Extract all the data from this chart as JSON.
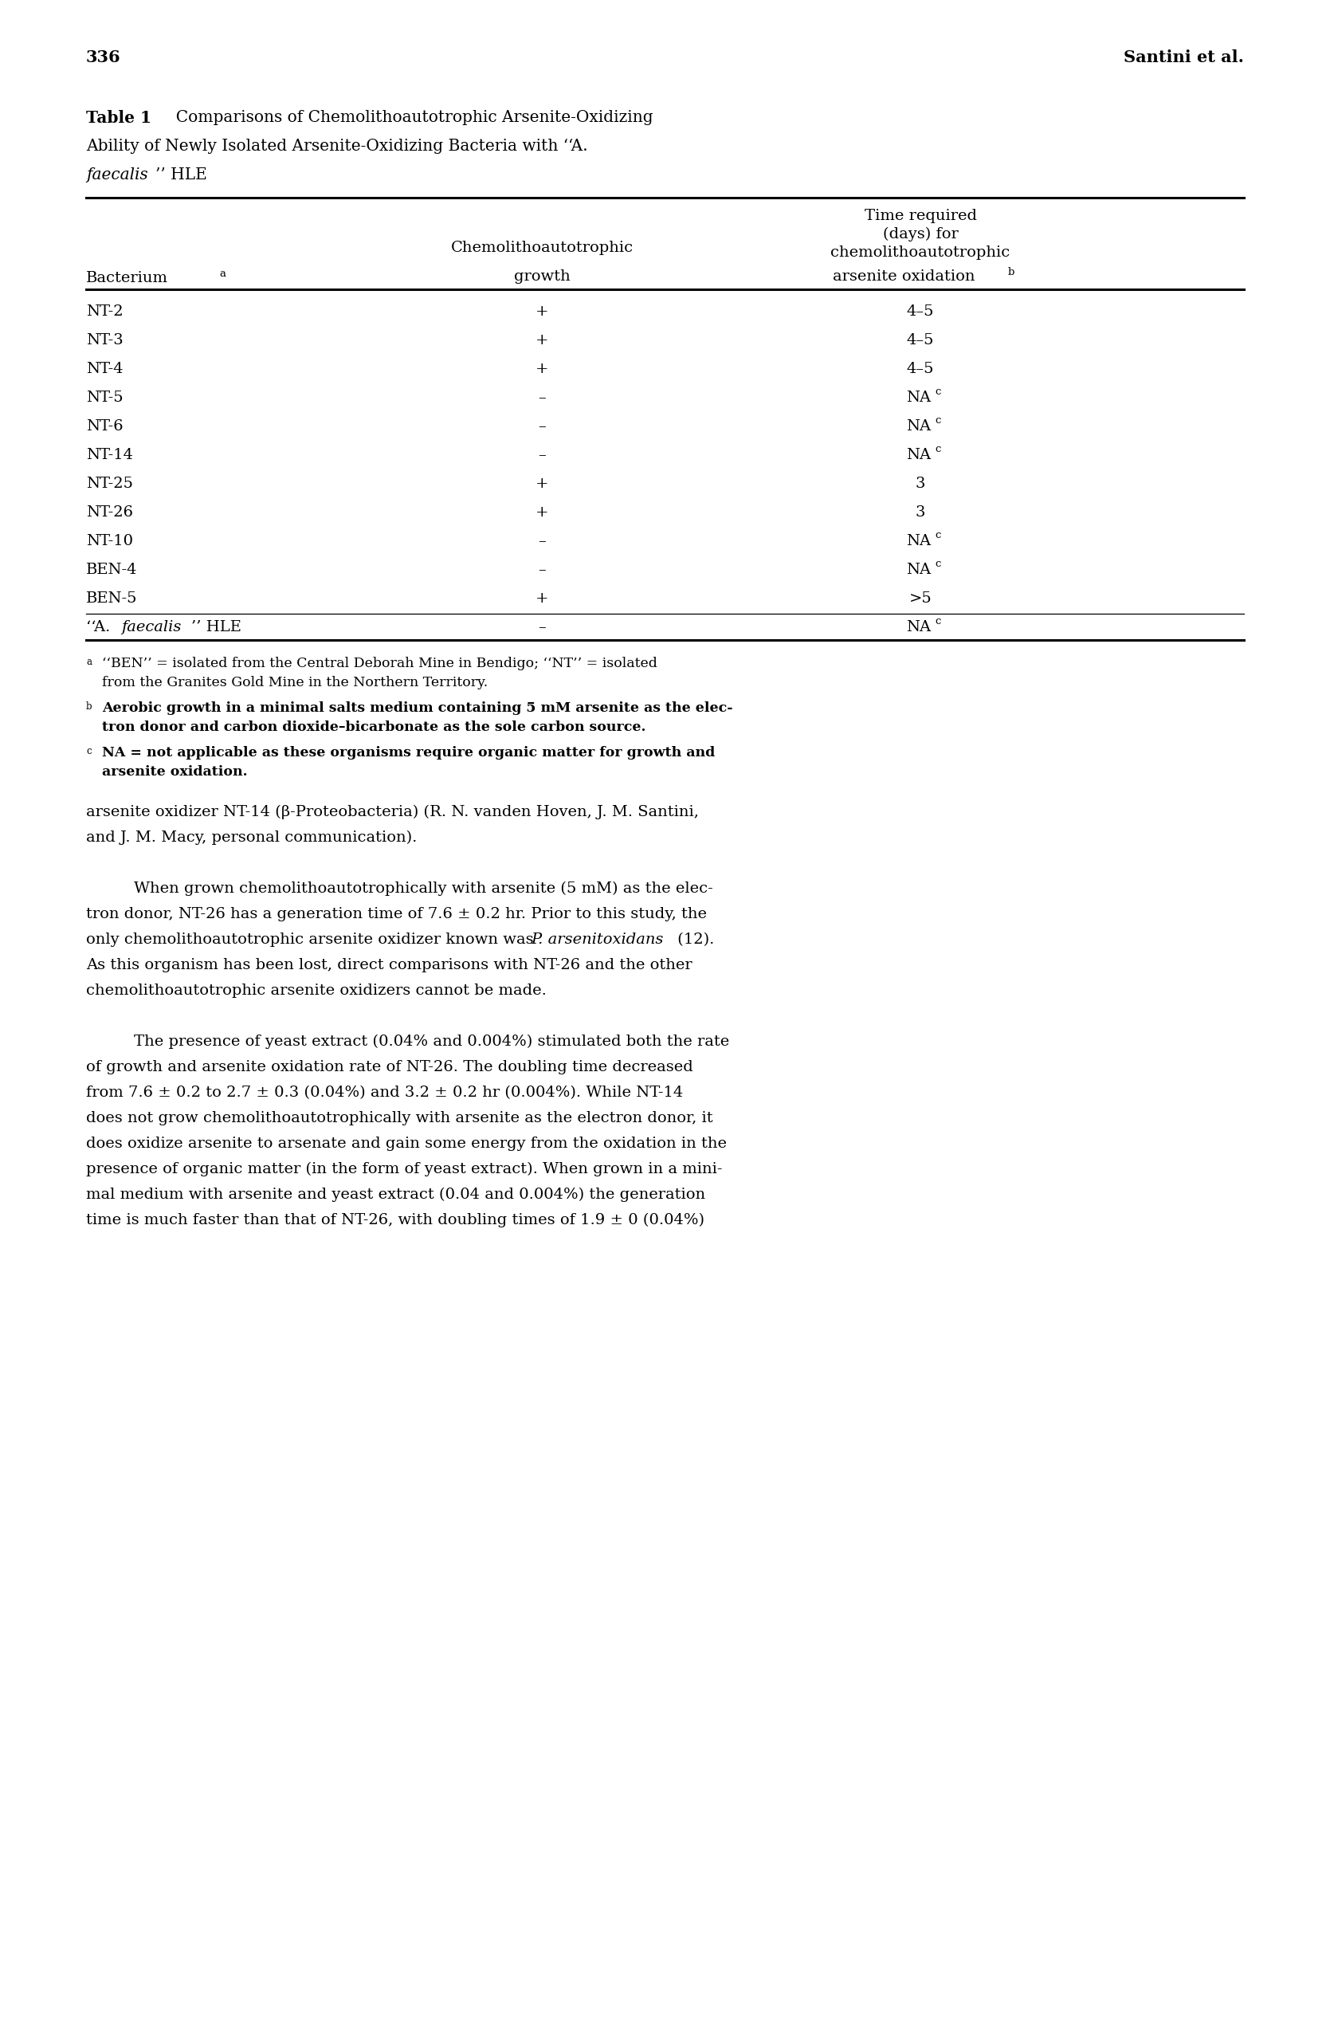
{
  "page_number": "336",
  "page_author": "Santini et al.",
  "rows": [
    [
      "NT-2",
      "+",
      "4–5"
    ],
    [
      "NT-3",
      "+",
      "4–5"
    ],
    [
      "NT-4",
      "+",
      "4–5"
    ],
    [
      "NT-5",
      "–",
      "NAc"
    ],
    [
      "NT-6",
      "–",
      "NAc"
    ],
    [
      "NT-14",
      "–",
      "NAc"
    ],
    [
      "NT-25",
      "+",
      "3"
    ],
    [
      "NT-26",
      "+",
      "3"
    ],
    [
      "NT-10",
      "–",
      "NAc"
    ],
    [
      "BEN-4",
      "–",
      "NAc"
    ],
    [
      "BEN-5",
      "+",
      ">5"
    ],
    [
      "A. faecalis HLE",
      "–",
      "NAc"
    ]
  ],
  "background_color": "#ffffff"
}
